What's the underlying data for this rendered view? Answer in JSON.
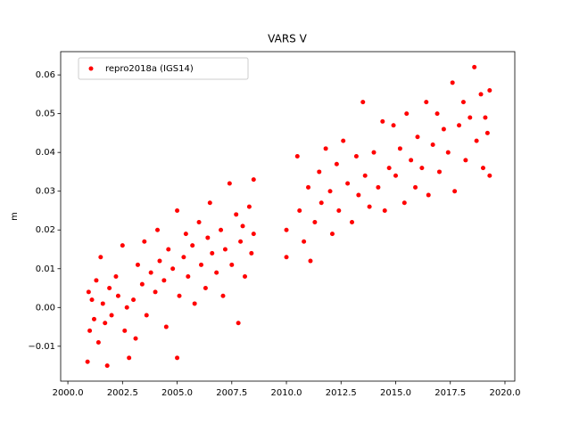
{
  "chart_data": {
    "type": "scatter",
    "title": "VARS V",
    "y_label": "m",
    "x": [
      2000.9,
      2000.95,
      2001.0,
      2001.1,
      2001.2,
      2001.3,
      2001.4,
      2001.5,
      2001.6,
      2001.7,
      2001.8,
      2001.9,
      2002.0,
      2002.2,
      2002.3,
      2002.5,
      2002.6,
      2002.7,
      2002.8,
      2003.0,
      2003.1,
      2003.2,
      2003.4,
      2003.5,
      2003.6,
      2003.8,
      2004.0,
      2004.1,
      2004.2,
      2004.4,
      2004.5,
      2004.6,
      2004.8,
      2005.0,
      2005.0,
      2005.1,
      2005.3,
      2005.4,
      2005.5,
      2005.7,
      2005.8,
      2006.0,
      2006.1,
      2006.3,
      2006.4,
      2006.5,
      2006.6,
      2006.8,
      2007.0,
      2007.1,
      2007.2,
      2007.4,
      2007.5,
      2007.7,
      2007.8,
      2007.9,
      2008.0,
      2008.1,
      2008.3,
      2008.4,
      2008.5,
      2008.5,
      2010.0,
      2010.0,
      2010.5,
      2010.6,
      2010.8,
      2011.0,
      2011.1,
      2011.3,
      2011.5,
      2011.6,
      2011.8,
      2012.0,
      2012.1,
      2012.3,
      2012.4,
      2012.6,
      2012.8,
      2013.0,
      2013.2,
      2013.3,
      2013.5,
      2013.6,
      2013.8,
      2014.0,
      2014.2,
      2014.4,
      2014.5,
      2014.7,
      2014.9,
      2015.0,
      2015.2,
      2015.4,
      2015.5,
      2015.7,
      2015.9,
      2016.0,
      2016.2,
      2016.4,
      2016.5,
      2016.7,
      2016.9,
      2017.0,
      2017.2,
      2017.4,
      2017.6,
      2017.7,
      2017.9,
      2018.1,
      2018.2,
      2018.4,
      2018.6,
      2018.7,
      2018.9,
      2019.0,
      2019.1,
      2019.2,
      2019.3,
      2019.3
    ],
    "series": [
      {
        "name": "repro2018a (IGS14)",
        "color": "#ff0000",
        "values": [
          -0.014,
          0.004,
          -0.006,
          0.002,
          -0.003,
          0.007,
          -0.009,
          0.013,
          0.001,
          -0.004,
          -0.015,
          0.005,
          -0.002,
          0.008,
          0.003,
          0.016,
          -0.006,
          0.0,
          -0.013,
          0.002,
          -0.008,
          0.011,
          0.006,
          0.017,
          -0.002,
          0.009,
          0.004,
          0.02,
          0.012,
          0.007,
          -0.005,
          0.015,
          0.01,
          0.025,
          -0.013,
          0.003,
          0.013,
          0.019,
          0.008,
          0.016,
          0.001,
          0.022,
          0.011,
          0.005,
          0.018,
          0.027,
          0.014,
          0.009,
          0.02,
          0.003,
          0.015,
          0.032,
          0.011,
          0.024,
          -0.004,
          0.017,
          0.021,
          0.008,
          0.026,
          0.014,
          0.033,
          0.019,
          0.013,
          0.02,
          0.039,
          0.025,
          0.017,
          0.031,
          0.012,
          0.022,
          0.035,
          0.027,
          0.041,
          0.03,
          0.019,
          0.037,
          0.025,
          0.043,
          0.032,
          0.022,
          0.039,
          0.029,
          0.053,
          0.034,
          0.026,
          0.04,
          0.031,
          0.048,
          0.025,
          0.036,
          0.047,
          0.034,
          0.041,
          0.027,
          0.05,
          0.038,
          0.031,
          0.044,
          0.036,
          0.053,
          0.029,
          0.042,
          0.05,
          0.035,
          0.046,
          0.04,
          0.058,
          0.03,
          0.047,
          0.053,
          0.038,
          0.049,
          0.062,
          0.043,
          0.055,
          0.036,
          0.049,
          0.045,
          0.056,
          0.034
        ]
      }
    ],
    "xlim": [
      1999.67,
      2020.45
    ],
    "ylim": [
      -0.019,
      0.066
    ],
    "xticks": [
      {
        "value": 2000,
        "label": "2000.0"
      },
      {
        "value": 2002.5,
        "label": "2002.5"
      },
      {
        "value": 2005,
        "label": "2005.0"
      },
      {
        "value": 2007.5,
        "label": "2007.5"
      },
      {
        "value": 2010,
        "label": "2010.0"
      },
      {
        "value": 2012.5,
        "label": "2012.5"
      },
      {
        "value": 2015,
        "label": "2015.0"
      },
      {
        "value": 2017.5,
        "label": "2017.5"
      },
      {
        "value": 2020,
        "label": "2020.0"
      }
    ],
    "yticks": [
      {
        "value": -0.01,
        "label": "−0.01"
      },
      {
        "value": 0,
        "label": "0.00"
      },
      0.01,
      0.02,
      0.03,
      0.04,
      0.05,
      0.06
    ],
    "legend": "upper left"
  }
}
